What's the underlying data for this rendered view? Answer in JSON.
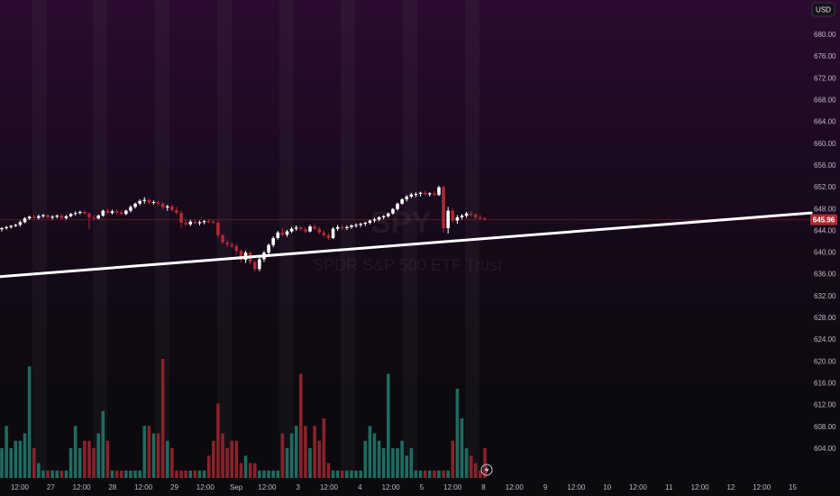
{
  "chart_data": {
    "type": "candlestick",
    "symbol": "SPY",
    "symbol_name": "SPDR S&P 500 ETF Trust",
    "currency": "USD",
    "last_price": "645.96",
    "ylim": [
      602,
      682
    ],
    "y_ticks": [
      "680.00",
      "676.00",
      "672.00",
      "668.00",
      "664.00",
      "660.00",
      "656.00",
      "652.00",
      "648.00",
      "644.00",
      "640.00",
      "636.00",
      "632.00",
      "628.00",
      "624.00",
      "620.00",
      "616.00",
      "612.00",
      "608.00",
      "604.00"
    ],
    "x_ticks": [
      "12:00",
      "27",
      "12:00",
      "28",
      "12:00",
      "29",
      "12:00",
      "Sep",
      "12:00",
      "3",
      "12:00",
      "4",
      "12:00",
      "5",
      "12:00",
      "8",
      "12:00",
      "9",
      "12:00",
      "10",
      "12:00",
      "11",
      "12:00",
      "12",
      "12:00",
      "15"
    ],
    "trendline": {
      "start_price": 635.5,
      "end_price": 647.2
    },
    "colors": {
      "up": "#ffffff",
      "down": "#b22833",
      "vol_up": "#1e6b61",
      "vol_down": "#8a222b",
      "trendline": "#ffffff",
      "price_tag": "#b22833",
      "session_band": "rgba(255,255,255,0.035)"
    },
    "candles": [
      [
        644.2,
        644.6,
        643.8,
        644.4
      ],
      [
        644.4,
        644.8,
        644.1,
        644.6
      ],
      [
        644.6,
        645.0,
        644.3,
        644.8
      ],
      [
        644.8,
        645.2,
        644.6,
        645.0
      ],
      [
        645.0,
        645.8,
        644.7,
        645.5
      ],
      [
        645.5,
        646.4,
        645.3,
        646.2
      ],
      [
        646.2,
        646.7,
        645.9,
        646.5
      ],
      [
        646.5,
        646.9,
        646.1,
        646.3
      ],
      [
        646.3,
        646.9,
        646.0,
        646.6
      ],
      [
        646.6,
        647.0,
        646.3,
        646.8
      ],
      [
        646.8,
        647.0,
        646.2,
        646.4
      ],
      [
        646.4,
        646.8,
        646.0,
        646.5
      ],
      [
        646.5,
        646.9,
        646.2,
        646.7
      ],
      [
        646.7,
        647.0,
        646.0,
        646.2
      ],
      [
        646.2,
        646.8,
        646.0,
        646.6
      ],
      [
        646.6,
        647.2,
        646.4,
        647.0
      ],
      [
        647.0,
        647.5,
        646.7,
        647.2
      ],
      [
        647.2,
        647.6,
        646.9,
        647.4
      ],
      [
        647.4,
        647.6,
        646.9,
        647.1
      ],
      [
        647.1,
        647.3,
        644.3,
        646.4
      ],
      [
        646.4,
        646.8,
        645.9,
        646.2
      ],
      [
        646.2,
        646.9,
        646.0,
        646.7
      ],
      [
        646.7,
        647.8,
        646.5,
        647.6
      ],
      [
        647.6,
        648.0,
        647.0,
        647.2
      ],
      [
        647.2,
        647.8,
        646.9,
        647.5
      ],
      [
        647.5,
        647.9,
        647.0,
        647.3
      ],
      [
        647.3,
        647.7,
        646.8,
        647.0
      ],
      [
        647.0,
        647.8,
        646.8,
        647.6
      ],
      [
        647.6,
        648.6,
        647.3,
        648.3
      ],
      [
        648.3,
        649.1,
        648.0,
        648.9
      ],
      [
        648.9,
        649.7,
        648.6,
        649.4
      ],
      [
        649.4,
        650.1,
        648.9,
        649.6
      ],
      [
        649.6,
        649.9,
        648.8,
        649.1
      ],
      [
        649.1,
        649.5,
        648.7,
        649.2
      ],
      [
        649.2,
        649.5,
        648.6,
        648.9
      ],
      [
        648.9,
        649.2,
        647.9,
        648.2
      ],
      [
        648.2,
        648.7,
        647.6,
        648.4
      ],
      [
        648.4,
        648.8,
        647.4,
        647.7
      ],
      [
        647.7,
        648.3,
        646.9,
        647.2
      ],
      [
        647.2,
        647.6,
        644.5,
        645.4
      ],
      [
        645.4,
        645.9,
        644.8,
        645.1
      ],
      [
        645.1,
        645.9,
        644.8,
        645.6
      ],
      [
        645.6,
        646.0,
        645.1,
        645.3
      ],
      [
        645.3,
        645.8,
        644.9,
        645.5
      ],
      [
        645.5,
        645.9,
        645.1,
        645.7
      ],
      [
        645.7,
        646.1,
        645.3,
        645.6
      ],
      [
        645.6,
        646.0,
        645.2,
        645.4
      ],
      [
        645.4,
        645.8,
        642.6,
        643.1
      ],
      [
        643.1,
        643.4,
        641.5,
        641.8
      ],
      [
        641.8,
        642.3,
        640.9,
        641.4
      ],
      [
        641.4,
        641.9,
        640.7,
        641.1
      ],
      [
        641.1,
        641.5,
        639.5,
        640.2
      ],
      [
        640.2,
        640.5,
        638.1,
        638.6
      ],
      [
        638.6,
        640.3,
        638.0,
        639.9
      ],
      [
        639.9,
        640.2,
        637.8,
        638.2
      ],
      [
        638.2,
        638.5,
        636.4,
        636.9
      ],
      [
        636.9,
        639.1,
        636.5,
        638.7
      ],
      [
        638.7,
        640.2,
        638.2,
        639.9
      ],
      [
        639.9,
        641.6,
        639.5,
        641.3
      ],
      [
        641.3,
        642.9,
        640.9,
        642.6
      ],
      [
        642.6,
        643.9,
        642.3,
        643.6
      ],
      [
        643.6,
        644.4,
        642.9,
        643.2
      ],
      [
        643.2,
        644.1,
        642.8,
        643.8
      ],
      [
        643.8,
        644.6,
        643.5,
        644.3
      ],
      [
        644.3,
        644.9,
        643.9,
        644.5
      ],
      [
        644.5,
        644.8,
        643.9,
        644.2
      ],
      [
        644.2,
        644.6,
        643.5,
        643.8
      ],
      [
        643.8,
        645.0,
        643.6,
        644.7
      ],
      [
        644.7,
        645.1,
        644.0,
        644.3
      ],
      [
        644.3,
        644.7,
        643.3,
        643.6
      ],
      [
        643.6,
        644.0,
        642.8,
        643.1
      ],
      [
        643.1,
        643.5,
        642.2,
        642.6
      ],
      [
        642.6,
        644.6,
        642.4,
        644.3
      ],
      [
        644.3,
        645.0,
        643.9,
        644.6
      ],
      [
        644.6,
        645.0,
        644.0,
        644.4
      ],
      [
        644.4,
        644.9,
        644.1,
        644.6
      ],
      [
        644.6,
        645.1,
        644.3,
        644.9
      ],
      [
        644.9,
        645.3,
        644.5,
        645.0
      ],
      [
        645.0,
        645.4,
        644.6,
        645.2
      ],
      [
        645.2,
        645.6,
        644.8,
        645.4
      ],
      [
        645.4,
        646.0,
        645.1,
        645.8
      ],
      [
        645.8,
        646.3,
        645.4,
        646.0
      ],
      [
        646.0,
        646.6,
        645.7,
        646.4
      ],
      [
        646.4,
        646.8,
        646.0,
        646.6
      ],
      [
        646.6,
        647.3,
        646.3,
        647.1
      ],
      [
        647.1,
        648.1,
        646.9,
        647.9
      ],
      [
        647.9,
        649.1,
        647.6,
        648.9
      ],
      [
        648.9,
        649.9,
        648.7,
        649.7
      ],
      [
        649.7,
        650.5,
        649.3,
        650.2
      ],
      [
        650.2,
        650.9,
        649.9,
        650.6
      ],
      [
        650.6,
        651.0,
        650.1,
        650.7
      ],
      [
        650.7,
        651.1,
        650.2,
        650.9
      ],
      [
        650.9,
        651.3,
        650.4,
        650.6
      ],
      [
        650.6,
        651.0,
        650.2,
        650.8
      ],
      [
        650.8,
        651.2,
        650.3,
        650.5
      ],
      [
        650.5,
        652.2,
        650.3,
        651.9
      ],
      [
        651.9,
        652.3,
        643.6,
        644.4
      ],
      [
        644.4,
        648.3,
        643.4,
        647.6
      ],
      [
        647.6,
        648.0,
        645.4,
        645.8
      ],
      [
        645.8,
        646.8,
        645.2,
        646.4
      ],
      [
        646.4,
        647.0,
        646.0,
        646.7
      ],
      [
        646.7,
        647.4,
        646.3,
        647.1
      ],
      [
        647.1,
        647.5,
        646.5,
        646.9
      ],
      [
        646.9,
        647.2,
        646.1,
        646.4
      ],
      [
        646.4,
        646.8,
        645.9,
        646.2
      ],
      [
        646.2,
        646.5,
        645.8,
        645.96
      ]
    ],
    "volume": [
      4,
      7,
      4,
      5,
      5,
      6,
      15,
      4,
      2,
      1,
      1,
      1,
      1,
      1,
      1,
      4,
      7,
      4,
      5,
      5,
      4,
      6,
      9,
      5,
      1,
      1,
      1,
      1,
      1,
      1,
      1,
      7,
      7,
      6,
      6,
      16,
      5,
      4,
      1,
      1,
      1,
      1,
      1,
      1,
      1,
      3,
      5,
      10,
      6,
      4,
      5,
      5,
      2,
      3,
      2,
      2,
      1,
      1,
      1,
      1,
      1,
      6,
      4,
      6,
      7,
      14,
      7,
      4,
      7,
      5,
      8,
      2,
      1,
      1,
      1,
      1,
      1,
      1,
      1,
      5,
      7,
      6,
      5,
      4,
      14,
      4,
      4,
      5,
      3,
      4,
      1,
      1,
      1,
      1,
      1,
      1,
      1,
      1,
      5,
      12,
      8,
      4,
      3,
      2,
      1,
      4
    ]
  }
}
